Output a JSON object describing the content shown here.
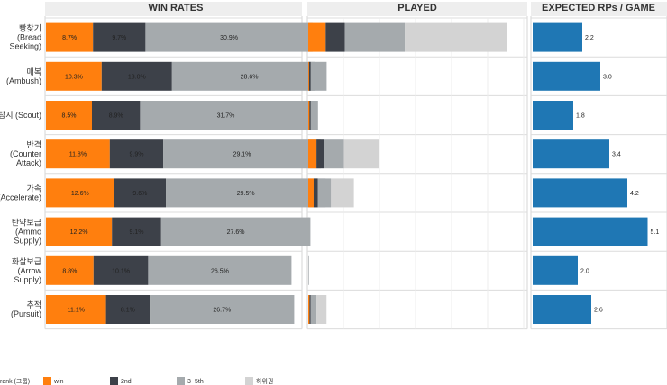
{
  "chart_data": {
    "type": "bar",
    "panels": {
      "win_rates": {
        "title": "WIN RATES"
      },
      "played": {
        "title": "PLAYED"
      },
      "expected": {
        "title": "EXPECTED RPs / GAME"
      }
    },
    "categories": [
      [
        "빵찾기",
        "(Bread",
        "Seeking)"
      ],
      [
        "매복",
        "(Ambush)"
      ],
      [
        "탐지 (Scout)"
      ],
      [
        "반격",
        "(Counter",
        "Attack)"
      ],
      [
        "가속",
        "(Accelerate)"
      ],
      [
        "탄약보급",
        "(Ammo",
        "Supply)"
      ],
      [
        "화살보급",
        "(Arrow",
        "Supply)"
      ],
      [
        "추적",
        "(Pursuit)"
      ]
    ],
    "legend_title": "rank (그룹)",
    "series": [
      {
        "name": "win",
        "color": "#ff7f0e",
        "win_rates": [
          8.7,
          10.3,
          8.5,
          11.8,
          12.6,
          12.2,
          8.8,
          11.1
        ],
        "labels": [
          "8.7%",
          "10.3%",
          "8.5%",
          "11.8%",
          "12.6%",
          "12.2%",
          "8.8%",
          "11.1%"
        ]
      },
      {
        "name": "2nd",
        "color": "#3d4149",
        "win_rates": [
          9.7,
          13.0,
          8.9,
          9.9,
          9.6,
          9.1,
          10.1,
          8.1
        ],
        "labels": [
          "9.7%",
          "13.0%",
          "8.9%",
          "9.9%",
          "9.6%",
          "9.1%",
          "10.1%",
          "8.1%"
        ]
      },
      {
        "name": "3~5th",
        "color": "#a5aaad",
        "win_rates": [
          30.9,
          28.6,
          31.7,
          29.1,
          29.5,
          27.6,
          26.5,
          26.7
        ],
        "labels": [
          "30.9%",
          "28.6%",
          "31.7%",
          "29.1%",
          "29.5%",
          "27.6%",
          "26.5%",
          "26.7%"
        ]
      },
      {
        "name": "하위권",
        "color": "#d3d3d3"
      }
    ],
    "played_share": [
      [
        0.084,
        0.092,
        0.29,
        0.494
      ],
      [
        0.004,
        0.008,
        0.018,
        0.0
      ],
      [
        0.006,
        0.006,
        0.035,
        0.0
      ],
      [
        0.04,
        0.034,
        0.098,
        0.168
      ],
      [
        0.026,
        0.02,
        0.064,
        0.11
      ],
      [
        0.0,
        0.0,
        0.004,
        0.0
      ],
      [
        0.0,
        0.0,
        0.003,
        0.0
      ],
      [
        0.006,
        0.006,
        0.028,
        0.048
      ]
    ],
    "expected_rps": {
      "color": "#1f77b4",
      "values": [
        2.2,
        3.0,
        1.8,
        3.4,
        4.2,
        5.1,
        2.0,
        2.6
      ],
      "labels": [
        "2.2",
        "3.0",
        "1.8",
        "3.4",
        "4.2",
        "5.1",
        "2.0",
        "2.6"
      ]
    },
    "grid": true
  }
}
